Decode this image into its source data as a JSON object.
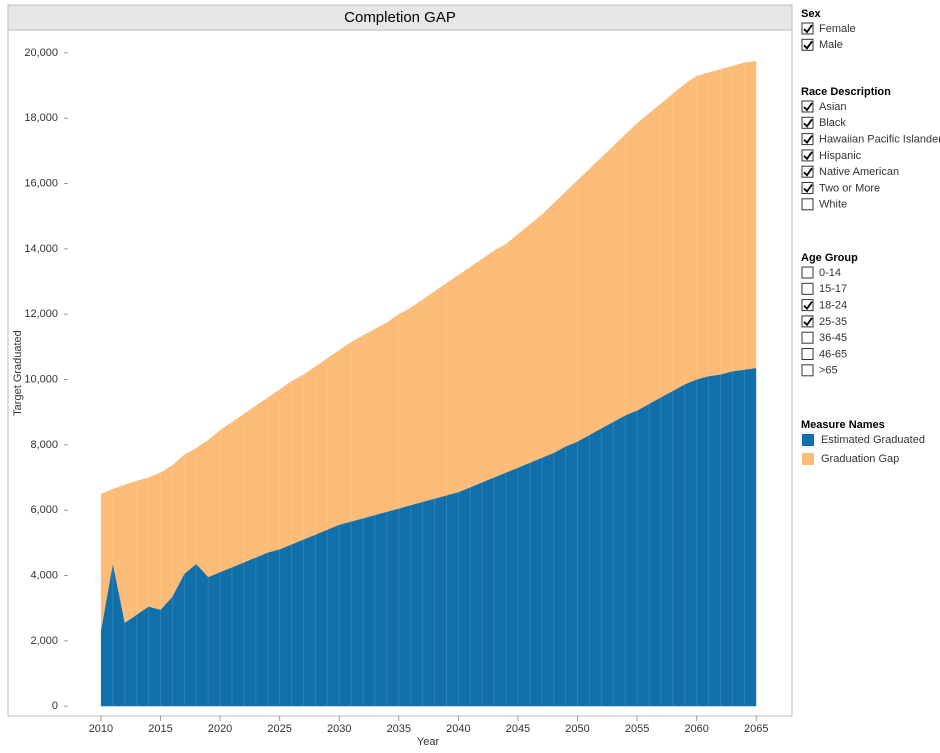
{
  "chart_data": {
    "type": "stacked_area",
    "title": "Completion GAP",
    "x_label": "Year",
    "y_label": "Target Graduated",
    "x": [
      2010,
      2011,
      2012,
      2013,
      2014,
      2015,
      2016,
      2017,
      2018,
      2019,
      2020,
      2021,
      2022,
      2023,
      2024,
      2025,
      2026,
      2027,
      2028,
      2029,
      2030,
      2031,
      2032,
      2033,
      2034,
      2035,
      2036,
      2037,
      2038,
      2039,
      2040,
      2041,
      2042,
      2043,
      2044,
      2045,
      2046,
      2047,
      2048,
      2049,
      2050,
      2051,
      2052,
      2053,
      2054,
      2055,
      2056,
      2057,
      2058,
      2059,
      2060,
      2061,
      2062,
      2063,
      2064,
      2065
    ],
    "legend_title": "Measure Names",
    "series": [
      {
        "name": "Estimated Graduated",
        "color": "#1170aa",
        "values": [
          2300,
          4350,
          2550,
          2800,
          3050,
          2950,
          3350,
          4050,
          4350,
          3950,
          4100,
          4250,
          4400,
          4550,
          4700,
          4800,
          4950,
          5100,
          5250,
          5400,
          5550,
          5650,
          5750,
          5850,
          5950,
          6050,
          6150,
          6250,
          6350,
          6450,
          6550,
          6700,
          6850,
          7000,
          7150,
          7300,
          7450,
          7600,
          7750,
          7950,
          8100,
          8300,
          8500,
          8700,
          8900,
          9050,
          9250,
          9450,
          9650,
          9850,
          10000,
          10100,
          10150,
          10250,
          10300,
          10350
        ]
      },
      {
        "name": "Graduation Gap",
        "color": "#fcbb76",
        "values": [
          4200,
          2300,
          4230,
          4100,
          3950,
          4200,
          4030,
          3650,
          3550,
          4200,
          4350,
          4450,
          4550,
          4650,
          4750,
          4900,
          5000,
          5050,
          5150,
          5250,
          5350,
          5500,
          5600,
          5700,
          5800,
          5950,
          6050,
          6200,
          6350,
          6500,
          6650,
          6750,
          6850,
          6950,
          7000,
          7150,
          7300,
          7450,
          7650,
          7800,
          8000,
          8150,
          8300,
          8450,
          8600,
          8800,
          8900,
          9000,
          9100,
          9200,
          9300,
          9300,
          9350,
          9350,
          9400,
          9400
        ]
      }
    ],
    "xlim": [
      2002.2,
      2068
    ],
    "xticks": [
      2010,
      2015,
      2020,
      2025,
      2030,
      2035,
      2040,
      2045,
      2050,
      2055,
      2060,
      2065
    ],
    "ylim": [
      -300,
      20700
    ],
    "yticks": [
      0,
      {
        "value": 2000,
        "label": "2,000"
      },
      {
        "value": 4000,
        "label": "4,000"
      },
      {
        "value": 6000,
        "label": "6,000"
      },
      {
        "value": 8000,
        "label": "8,000"
      },
      {
        "value": 10000,
        "label": "10,000"
      },
      {
        "value": 12000,
        "label": "12,000"
      },
      {
        "value": 14000,
        "label": "14,000"
      },
      {
        "value": 16000,
        "label": "16,000"
      },
      {
        "value": 18000,
        "label": "18,000"
      },
      {
        "value": 20000,
        "label": "20,000"
      }
    ]
  },
  "filters": [
    {
      "title": "Sex",
      "items": [
        {
          "label": "Female",
          "checked": true
        },
        {
          "label": "Male",
          "checked": true
        }
      ]
    },
    {
      "title": "Race Description",
      "items": [
        {
          "label": "Asian",
          "checked": true
        },
        {
          "label": "Black",
          "checked": true
        },
        {
          "label": "Hawaiian Pacific Islander",
          "checked": true
        },
        {
          "label": "Hispanic",
          "checked": true
        },
        {
          "label": "Native American",
          "checked": true
        },
        {
          "label": "Two or More",
          "checked": true
        },
        {
          "label": "White",
          "checked": false
        }
      ]
    },
    {
      "title": "Age Group",
      "items": [
        {
          "label": "0-14",
          "checked": false
        },
        {
          "label": "15-17",
          "checked": false
        },
        {
          "label": "18-24",
          "checked": true
        },
        {
          "label": "25-35",
          "checked": true
        },
        {
          "label": "36-45",
          "checked": false
        },
        {
          "label": "46-65",
          "checked": false
        },
        {
          "label": ">65",
          "checked": false
        }
      ]
    }
  ]
}
